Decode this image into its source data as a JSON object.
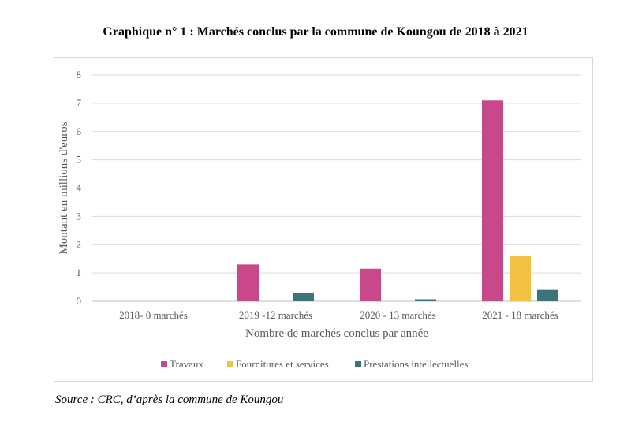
{
  "chart_data": {
    "type": "bar",
    "title": "Graphique n° 1 :  Marchés conclus par la commune de Koungou de 2018 à 2021",
    "xlabel": "Nombre de marchés conclus par année",
    "ylabel": "Montant en millions d'euros",
    "categories": [
      "2018- 0 marchés",
      "2019 -12 marchés",
      "2020 - 13 marchés",
      "2021 - 18 marchés"
    ],
    "ylim": [
      0,
      8
    ],
    "yticks": [
      "0",
      "1",
      "2",
      "3",
      "4",
      "5",
      "6",
      "7",
      "8"
    ],
    "grid": true,
    "legend_position": "bottom",
    "series": [
      {
        "name": "Travaux",
        "color": "#c8488a",
        "values": [
          0,
          1.3,
          1.15,
          7.1
        ]
      },
      {
        "name": "Fournitures et services",
        "color": "#f2c141",
        "values": [
          0,
          0,
          0,
          1.6
        ]
      },
      {
        "name": "Prestations intellectuelles",
        "color": "#3d7478",
        "values": [
          0,
          0.3,
          0.07,
          0.4
        ]
      }
    ]
  },
  "source": "Source : CRC, d’après la commune de Koungou"
}
